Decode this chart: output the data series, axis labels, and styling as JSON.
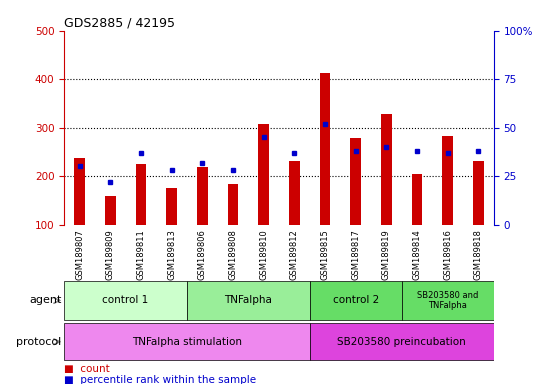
{
  "title": "GDS2885 / 42195",
  "samples": [
    "GSM189807",
    "GSM189809",
    "GSM189811",
    "GSM189813",
    "GSM189806",
    "GSM189808",
    "GSM189810",
    "GSM189812",
    "GSM189815",
    "GSM189817",
    "GSM189819",
    "GSM189814",
    "GSM189816",
    "GSM189818"
  ],
  "counts": [
    238,
    160,
    225,
    175,
    218,
    183,
    308,
    232,
    413,
    278,
    328,
    205,
    283,
    232
  ],
  "percentile_ranks": [
    30,
    22,
    37,
    28,
    32,
    28,
    45,
    37,
    52,
    38,
    40,
    38,
    37,
    38
  ],
  "ylim_left": [
    100,
    500
  ],
  "ylim_right": [
    0,
    100
  ],
  "yticks_left": [
    100,
    200,
    300,
    400,
    500
  ],
  "yticks_right": [
    0,
    25,
    50,
    75,
    100
  ],
  "bar_color": "#cc0000",
  "dot_color": "#0000cc",
  "bar_width": 0.35,
  "agent_groups": [
    {
      "label": "control 1",
      "start": 0,
      "end": 4,
      "color": "#ccffcc"
    },
    {
      "label": "TNFalpha",
      "start": 4,
      "end": 8,
      "color": "#99ee99"
    },
    {
      "label": "control 2",
      "start": 8,
      "end": 11,
      "color": "#66dd66"
    },
    {
      "label": "SB203580 and\nTNFalpha",
      "start": 11,
      "end": 14,
      "color": "#66dd66"
    }
  ],
  "protocol_groups": [
    {
      "label": "TNFalpha stimulation",
      "start": 0,
      "end": 8,
      "color": "#ee88ee"
    },
    {
      "label": "SB203580 preincubation",
      "start": 8,
      "end": 14,
      "color": "#dd44dd"
    }
  ],
  "legend_items": [
    {
      "label": "count",
      "color": "#cc0000"
    },
    {
      "label": "percentile rank within the sample",
      "color": "#0000cc"
    }
  ],
  "left_axis_color": "#cc0000",
  "right_axis_color": "#0000cc",
  "grid_dotted_at": [
    200,
    300,
    400
  ]
}
